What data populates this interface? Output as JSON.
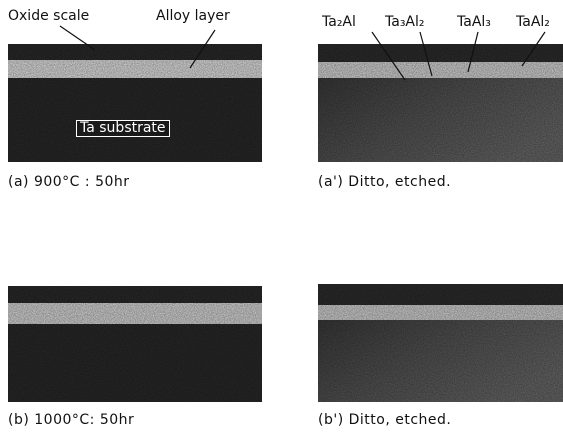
{
  "panels": [
    {
      "caption": "(a) 900°C : 50hr",
      "labels": [
        "Oxide scale",
        "Alloy layer",
        "Ta substrate"
      ]
    },
    {
      "caption": "(a') Ditto, etched.",
      "labels": [
        "Ta₂Al",
        "Ta₃Al₂",
        "TaAl₃",
        "TaAl₂"
      ]
    },
    {
      "caption": "(b) 1000°C: 50hr",
      "labels": []
    },
    {
      "caption": "(b') Ditto, etched.",
      "labels": []
    }
  ]
}
